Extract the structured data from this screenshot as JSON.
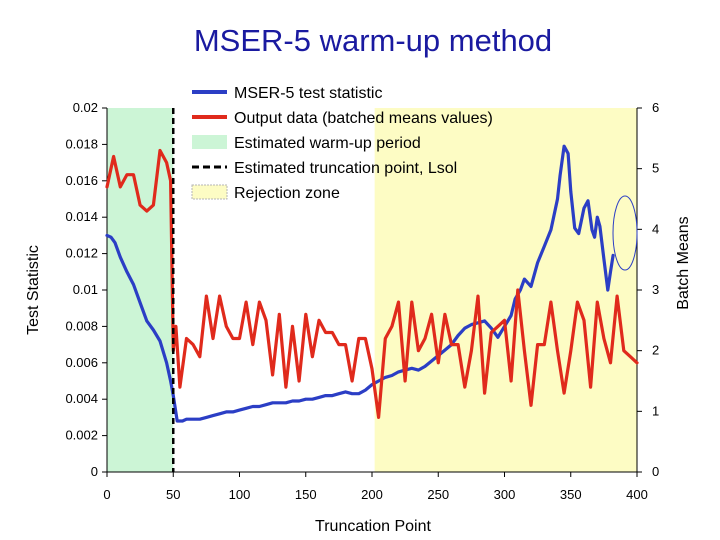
{
  "chart_data": {
    "type": "line",
    "title": "MSER-5 warm-up method",
    "xlabel": "Truncation Point",
    "ylabel_left": "Test Statistic",
    "ylabel_right": "Batch Means",
    "xlim": [
      0,
      400
    ],
    "ylim_left": [
      0,
      0.02
    ],
    "ylim_right": [
      0,
      6
    ],
    "x_ticks": [
      "0",
      "50",
      "100",
      "150",
      "200",
      "250",
      "300",
      "350",
      "400"
    ],
    "y_left_ticks": [
      "0",
      "0.002",
      "0.004",
      "0.006",
      "0.008",
      "0.01",
      "0.012",
      "0.014",
      "0.016",
      "0.018",
      "0.02"
    ],
    "y_right_ticks": [
      "0",
      "1",
      "2",
      "3",
      "4",
      "5",
      "6"
    ],
    "regions": [
      {
        "name": "Estimated warm-up period",
        "x_start": 0,
        "x_end": 50,
        "color": "#ccf5d6"
      },
      {
        "name": "Rejection zone",
        "x_start": 202,
        "x_end": 400,
        "color": "#fdfcc4"
      }
    ],
    "truncation_point": 50,
    "series": [
      {
        "name": "MSER-5 test statistic",
        "axis": "left",
        "color": "#2b3ec5",
        "x": [
          0,
          3,
          6,
          10,
          15,
          20,
          25,
          30,
          35,
          40,
          45,
          48,
          50,
          53,
          57,
          60,
          65,
          70,
          75,
          80,
          85,
          90,
          95,
          100,
          105,
          110,
          115,
          120,
          125,
          130,
          135,
          140,
          145,
          150,
          155,
          160,
          165,
          170,
          175,
          180,
          185,
          190,
          195,
          200,
          205,
          210,
          215,
          220,
          225,
          230,
          235,
          240,
          245,
          250,
          255,
          260,
          265,
          270,
          275,
          280,
          285,
          290,
          295,
          300,
          305,
          308,
          312,
          315,
          320,
          325,
          330,
          335,
          340,
          342,
          345,
          348,
          350,
          353,
          356,
          360,
          363,
          366,
          368,
          370,
          372,
          375,
          378,
          380,
          382
        ],
        "y": [
          0.013,
          0.0129,
          0.0126,
          0.0118,
          0.011,
          0.0103,
          0.0093,
          0.0083,
          0.0078,
          0.0072,
          0.006,
          0.005,
          0.0042,
          0.0028,
          0.0028,
          0.0029,
          0.0029,
          0.0029,
          0.003,
          0.0031,
          0.0032,
          0.0033,
          0.0033,
          0.0034,
          0.0035,
          0.0036,
          0.0036,
          0.0037,
          0.0038,
          0.0038,
          0.0038,
          0.0039,
          0.0039,
          0.004,
          0.004,
          0.0041,
          0.0042,
          0.0042,
          0.0043,
          0.0044,
          0.0043,
          0.0043,
          0.0045,
          0.0048,
          0.005,
          0.0052,
          0.0053,
          0.0055,
          0.0056,
          0.0057,
          0.0056,
          0.0058,
          0.0061,
          0.0064,
          0.0067,
          0.007,
          0.0075,
          0.0079,
          0.0081,
          0.0082,
          0.0083,
          0.0079,
          0.0074,
          0.008,
          0.0086,
          0.0095,
          0.01,
          0.0106,
          0.0102,
          0.0115,
          0.0124,
          0.0133,
          0.015,
          0.0163,
          0.0179,
          0.0175,
          0.0154,
          0.0134,
          0.0131,
          0.0145,
          0.0149,
          0.0133,
          0.0129,
          0.014,
          0.0135,
          0.0117,
          0.01,
          0.011,
          0.0119
        ]
      },
      {
        "name": "Output data (batched means values)",
        "axis": "right",
        "color": "#e02a1c",
        "x": [
          0,
          5,
          10,
          15,
          20,
          25,
          30,
          35,
          40,
          45,
          48,
          50,
          52,
          55,
          60,
          65,
          70,
          75,
          80,
          85,
          90,
          95,
          100,
          105,
          110,
          115,
          120,
          125,
          130,
          135,
          140,
          145,
          150,
          155,
          160,
          165,
          170,
          175,
          180,
          185,
          190,
          195,
          200,
          205,
          210,
          215,
          220,
          225,
          230,
          235,
          240,
          245,
          250,
          255,
          260,
          265,
          270,
          275,
          280,
          285,
          290,
          295,
          300,
          305,
          310,
          315,
          320,
          325,
          330,
          335,
          340,
          345,
          350,
          355,
          360,
          365,
          370,
          375,
          380,
          385,
          390,
          395,
          400
        ],
        "y": [
          4.7,
          5.2,
          4.7,
          4.9,
          4.9,
          4.4,
          4.3,
          4.4,
          5.3,
          5.1,
          4.8,
          2.0,
          2.4,
          1.4,
          2.2,
          2.1,
          1.9,
          2.9,
          2.2,
          2.9,
          2.4,
          2.2,
          2.2,
          2.8,
          2.1,
          2.8,
          2.5,
          1.6,
          2.6,
          1.4,
          2.4,
          1.5,
          2.6,
          1.9,
          2.5,
          2.3,
          2.3,
          2.1,
          2.1,
          1.5,
          2.2,
          2.2,
          1.7,
          0.9,
          2.2,
          2.4,
          2.8,
          1.5,
          2.8,
          2.0,
          2.2,
          2.6,
          1.8,
          2.6,
          2.1,
          2.1,
          1.4,
          2.0,
          2.9,
          1.3,
          2.3,
          2.4,
          2.5,
          1.5,
          3.0,
          2.0,
          1.1,
          2.1,
          2.1,
          2.8,
          2.0,
          1.3,
          2.0,
          2.8,
          2.5,
          1.4,
          2.8,
          2.2,
          1.8,
          2.9,
          2.0,
          1.9,
          1.8
        ]
      }
    ],
    "legend": {
      "placement": "top-center",
      "entries": [
        {
          "label": "MSER-5 test statistic",
          "style": "line",
          "color": "#2b3ec5"
        },
        {
          "label": "Output data (batched means values)",
          "style": "line",
          "color": "#e02a1c"
        },
        {
          "label": "Estimated warm-up period",
          "style": "patch",
          "color": "#ccf5d6"
        },
        {
          "label": "Estimated truncation point, Lsol",
          "style": "dash",
          "color": "#000000"
        },
        {
          "label": "Rejection zone",
          "style": "patch",
          "color": "#fdfcc4"
        }
      ]
    }
  }
}
